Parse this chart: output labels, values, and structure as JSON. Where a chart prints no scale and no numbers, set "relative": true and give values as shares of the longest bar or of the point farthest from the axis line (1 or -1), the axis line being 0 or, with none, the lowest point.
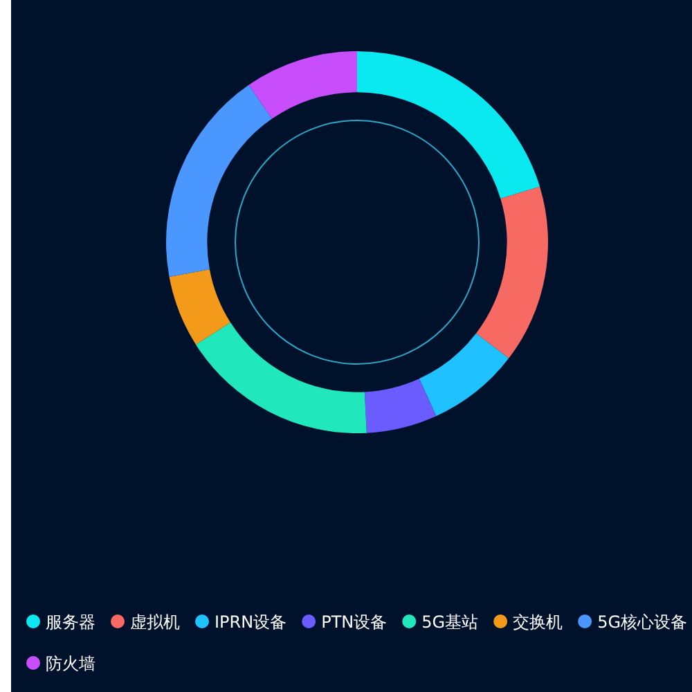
{
  "chart_data": {
    "type": "donut",
    "relative": true,
    "legend": "bottom",
    "categories": [
      "服务器",
      "虚拟机",
      "IPRN设备",
      "PTN设备",
      "5G基站",
      "交换机",
      "5G核心设备",
      "防火墙"
    ],
    "values": [
      20.3,
      15.1,
      7.8,
      6.0,
      16.8,
      6.1,
      18.3,
      9.6
    ],
    "colors": [
      "#0ae8f0",
      "#f76a63",
      "#1fc2ff",
      "#6b5cff",
      "#20e8bc",
      "#f39a1a",
      "#4a98ff",
      "#c84dfb"
    ]
  }
}
